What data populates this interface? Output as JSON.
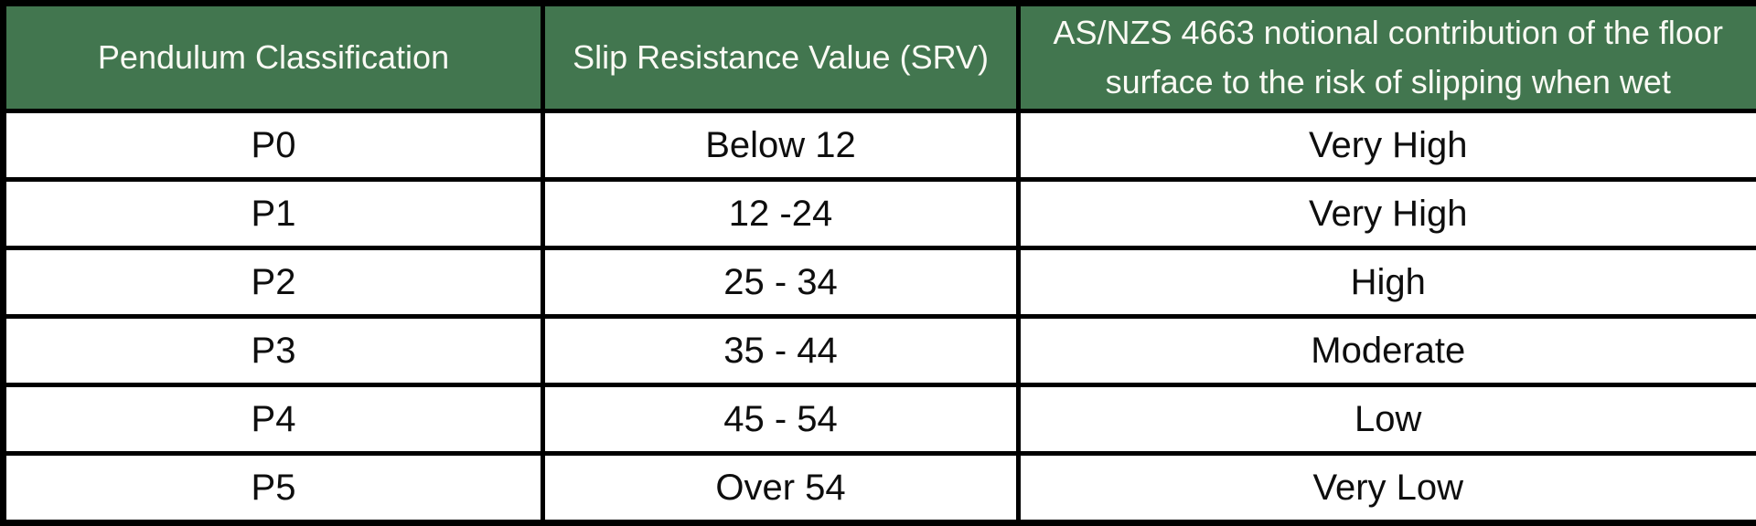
{
  "colors": {
    "header_background": "#42764F",
    "header_text": "#FAFAF4",
    "body_text": "#0E0E0E",
    "border": "#000000",
    "row_background": "#FFFFFF"
  },
  "table": {
    "headers": [
      {
        "label": "Pendulum Classification"
      },
      {
        "label": "Slip Resistance Value (SRV)"
      },
      {
        "label": "AS/NZS 4663 notional contribution of the floor surface to the risk of slipping when wet",
        "lines": [
          "AS/NZS 4663 notional contribution of the floor",
          "surface to the risk of slipping when wet"
        ]
      }
    ],
    "rows": [
      {
        "pendulum": "P0",
        "srv": "Below 12",
        "risk": "Very High"
      },
      {
        "pendulum": "P1",
        "srv": "12 -24",
        "risk": "Very High"
      },
      {
        "pendulum": "P2",
        "srv": "25 - 34",
        "risk": "High"
      },
      {
        "pendulum": "P3",
        "srv": "35 - 44",
        "risk": "Moderate"
      },
      {
        "pendulum": "P4",
        "srv": "45 - 54",
        "risk": "Low"
      },
      {
        "pendulum": "P5",
        "srv": "Over 54",
        "risk": "Very Low"
      }
    ]
  }
}
